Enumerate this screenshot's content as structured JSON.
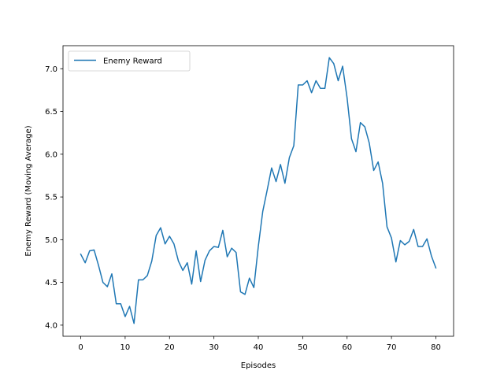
{
  "chart_data": {
    "type": "line",
    "xlabel": "Episodes",
    "ylabel": "Enemy Reward (Moving Average)",
    "xlim": [
      -4,
      84
    ],
    "ylim": [
      3.87,
      7.27
    ],
    "grid": false,
    "legend_position": "top-left",
    "x_ticks": [
      0,
      10,
      20,
      30,
      40,
      50,
      60,
      70,
      80
    ],
    "x_tick_labels": [
      "0",
      "10",
      "20",
      "30",
      "40",
      "50",
      "60",
      "70",
      "80"
    ],
    "y_ticks": [
      4.0,
      4.5,
      5.0,
      5.5,
      6.0,
      6.5,
      7.0
    ],
    "y_tick_labels": [
      "4.0",
      "4.5",
      "5.0",
      "5.5",
      "6.0",
      "6.5",
      "7.0"
    ],
    "series": [
      {
        "name": "Enemy Reward",
        "color": "#1f77b4",
        "x": [
          0,
          1,
          2,
          3,
          4,
          5,
          6,
          7,
          8,
          9,
          10,
          11,
          12,
          13,
          14,
          15,
          16,
          17,
          18,
          19,
          20,
          21,
          22,
          23,
          24,
          25,
          26,
          27,
          28,
          29,
          30,
          31,
          32,
          33,
          34,
          35,
          36,
          37,
          38,
          39,
          40,
          41,
          42,
          43,
          44,
          45,
          46,
          47,
          48,
          49,
          50,
          51,
          52,
          53,
          54,
          55,
          56,
          57,
          58,
          59,
          60,
          61,
          62,
          63,
          64,
          65,
          66,
          67,
          68,
          69,
          70,
          71,
          72,
          73,
          74,
          75,
          76,
          77,
          78,
          79,
          80
        ],
        "y": [
          4.83,
          4.73,
          4.87,
          4.88,
          4.7,
          4.5,
          4.45,
          4.6,
          4.25,
          4.25,
          4.1,
          4.22,
          4.02,
          4.53,
          4.53,
          4.58,
          4.75,
          5.05,
          5.14,
          4.95,
          5.04,
          4.95,
          4.75,
          4.64,
          4.73,
          4.48,
          4.87,
          4.51,
          4.76,
          4.87,
          4.92,
          4.91,
          5.11,
          4.8,
          4.9,
          4.85,
          4.39,
          4.36,
          4.55,
          4.44,
          4.92,
          5.33,
          5.58,
          5.84,
          5.68,
          5.88,
          5.66,
          5.96,
          6.1,
          6.81,
          6.81,
          6.86,
          6.72,
          6.86,
          6.77,
          6.77,
          7.13,
          7.06,
          6.86,
          7.03,
          6.66,
          6.18,
          6.03,
          6.37,
          6.32,
          6.13,
          5.81,
          5.91,
          5.66,
          5.15,
          5.02,
          4.74,
          4.99,
          4.94,
          4.98,
          5.12,
          4.92,
          4.92,
          5.01,
          4.81,
          4.67
        ]
      }
    ]
  }
}
